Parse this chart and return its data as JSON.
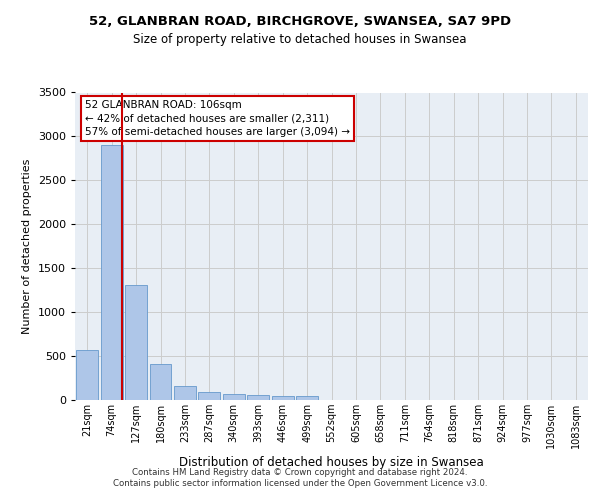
{
  "title1": "52, GLANBRAN ROAD, BIRCHGROVE, SWANSEA, SA7 9PD",
  "title2": "Size of property relative to detached houses in Swansea",
  "xlabel": "Distribution of detached houses by size in Swansea",
  "ylabel": "Number of detached properties",
  "bin_labels": [
    "21sqm",
    "74sqm",
    "127sqm",
    "180sqm",
    "233sqm",
    "287sqm",
    "340sqm",
    "393sqm",
    "446sqm",
    "499sqm",
    "552sqm",
    "605sqm",
    "658sqm",
    "711sqm",
    "764sqm",
    "818sqm",
    "871sqm",
    "924sqm",
    "977sqm",
    "1030sqm",
    "1083sqm"
  ],
  "bar_heights": [
    570,
    2900,
    1310,
    415,
    155,
    90,
    65,
    57,
    47,
    42,
    0,
    0,
    0,
    0,
    0,
    0,
    0,
    0,
    0,
    0,
    0
  ],
  "bar_color": "#aec6e8",
  "bar_edge_color": "#6699cc",
  "vline_x": 1.43,
  "vline_color": "#cc0000",
  "annotation_text": "52 GLANBRAN ROAD: 106sqm\n← 42% of detached houses are smaller (2,311)\n57% of semi-detached houses are larger (3,094) →",
  "annotation_box_color": "#ffffff",
  "annotation_box_edge": "#cc0000",
  "ylim": [
    0,
    3500
  ],
  "yticks": [
    0,
    500,
    1000,
    1500,
    2000,
    2500,
    3000,
    3500
  ],
  "grid_color": "#cccccc",
  "bg_color": "#e8eef5",
  "footnote1": "Contains HM Land Registry data © Crown copyright and database right 2024.",
  "footnote2": "Contains public sector information licensed under the Open Government Licence v3.0."
}
